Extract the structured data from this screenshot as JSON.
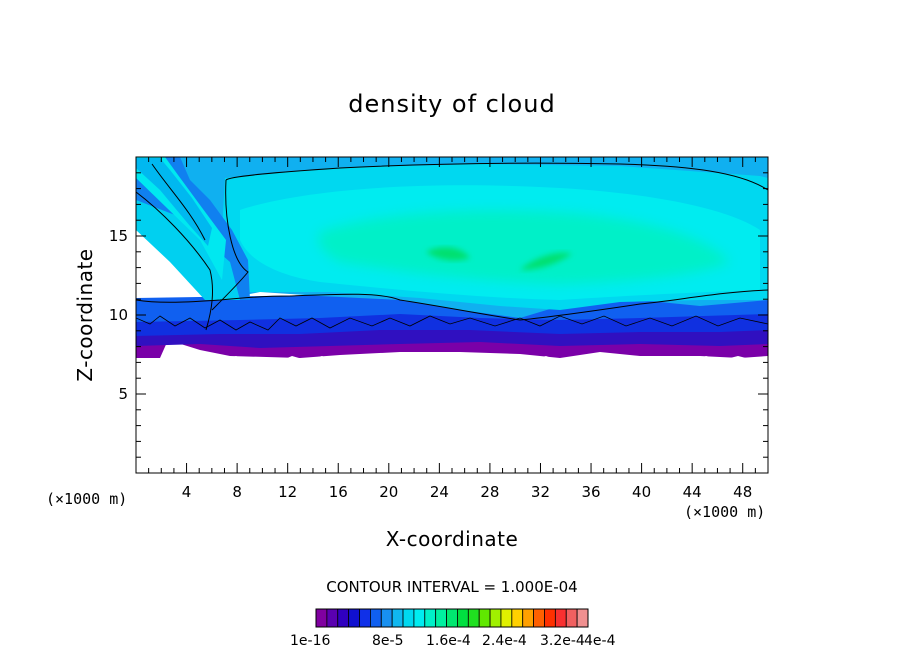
{
  "chart_data": {
    "type": "heatmap",
    "title": "density of cloud",
    "xlabel": "X-coordinate",
    "ylabel": "Z-coordinate",
    "x_unit": "(×1000 m)",
    "y_unit": "(×1000 m)",
    "xlim": [
      0,
      50
    ],
    "ylim": [
      0,
      20
    ],
    "x_ticks": [
      4,
      8,
      12,
      16,
      20,
      24,
      28,
      32,
      36,
      40,
      44,
      48
    ],
    "x_tick_labels": [
      "4",
      "8",
      "12",
      "16",
      "20",
      "24",
      "28",
      "32",
      "36",
      "40",
      "44",
      "48"
    ],
    "y_ticks": [
      5,
      10,
      15
    ],
    "y_tick_labels": [
      "5",
      "10",
      "15"
    ],
    "contour_interval_text": "CONTOUR INTERVAL = 1.000E-04",
    "colorbar": {
      "colors": [
        "#8000a0",
        "#5a00b0",
        "#3000c0",
        "#1010d0",
        "#1030e8",
        "#1060f0",
        "#1890f0",
        "#10b8f0",
        "#00d8f0",
        "#00ecf0",
        "#00f0c8",
        "#00f0a0",
        "#00e870",
        "#00e040",
        "#20e020",
        "#60e800",
        "#a0f000",
        "#e0f000",
        "#ffd000",
        "#ffa000",
        "#ff6000",
        "#ff3000",
        "#f83030",
        "#f06060",
        "#f09090"
      ],
      "labels": [
        "1e-16",
        "8e-5",
        "1.6e-4",
        "2.4e-4",
        "3.2e-4",
        "4e-4"
      ]
    },
    "field_description_levels": [
      "1e-16",
      "8e-5",
      "1.6e-4"
    ],
    "grid": false
  }
}
